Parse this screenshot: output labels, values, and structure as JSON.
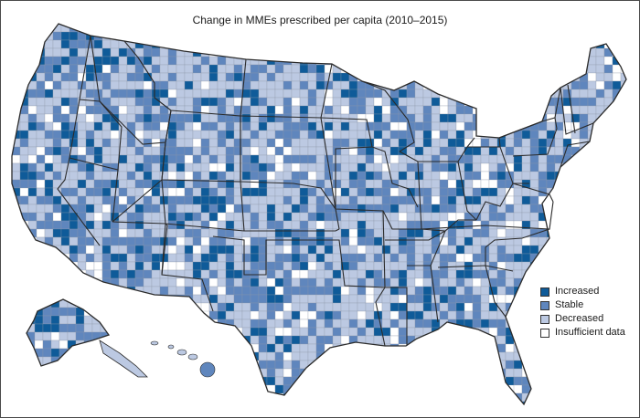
{
  "title": "Change in MMEs prescribed per capita (2010–2015)",
  "colors": {
    "increased": "#0f5b99",
    "stable": "#5f86bd",
    "decreased": "#bcc9e2",
    "insufficient": "#ffffff",
    "state_border": "#2b2b2b",
    "county_border": "#8d96a8"
  },
  "legend": [
    {
      "key": "increased",
      "label": "Increased"
    },
    {
      "key": "stable",
      "label": "Stable"
    },
    {
      "key": "decreased",
      "label": "Decreased"
    },
    {
      "key": "insufficient",
      "label": "Insufficient data"
    }
  ]
}
